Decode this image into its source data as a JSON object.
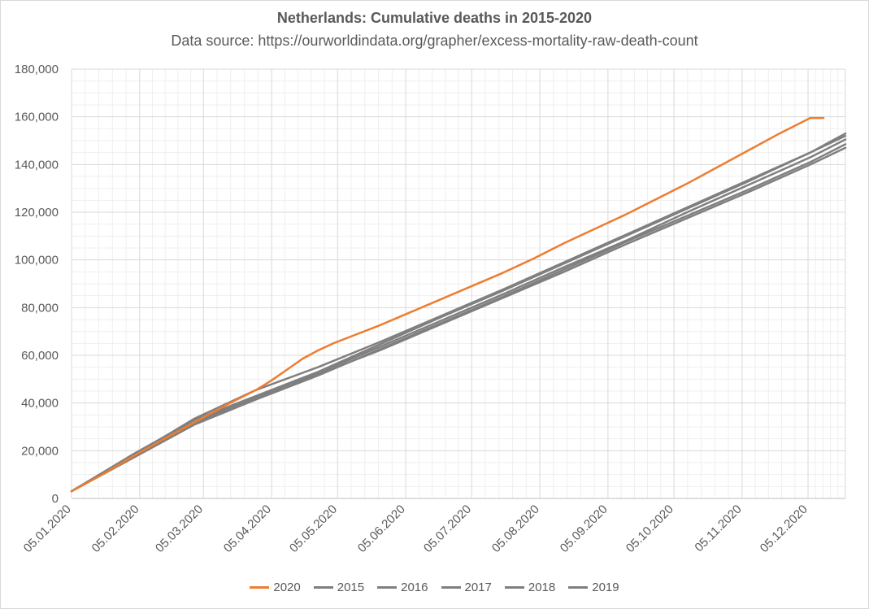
{
  "chart_data": {
    "type": "line",
    "title": "Netherlands: Cumulative deaths in 2015-2020",
    "subtitle": "Data source: https://ourworldindata.org/grapher/excess-mortality-raw-death-count",
    "xlabel": "",
    "ylabel": "",
    "ylim": [
      0,
      180000
    ],
    "y_ticks": [
      "0",
      "20,000",
      "40,000",
      "60,000",
      "80,000",
      "100,000",
      "120,000",
      "140,000",
      "160,000",
      "180,000"
    ],
    "x_range": [
      0,
      352
    ],
    "x_ticks": [
      {
        "day": 0,
        "label": "05.01.2020"
      },
      {
        "day": 31,
        "label": "05.02.2020"
      },
      {
        "day": 60,
        "label": "05.03.2020"
      },
      {
        "day": 91,
        "label": "05.04.2020"
      },
      {
        "day": 121,
        "label": "05.05.2020"
      },
      {
        "day": 152,
        "label": "05.06.2020"
      },
      {
        "day": 182,
        "label": "05.07.2020"
      },
      {
        "day": 213,
        "label": "05.08.2020"
      },
      {
        "day": 244,
        "label": "05.09.2020"
      },
      {
        "day": 274,
        "label": "05.10.2020"
      },
      {
        "day": 305,
        "label": "05.11.2020"
      },
      {
        "day": 335,
        "label": "05.12.2020"
      }
    ],
    "grid": true,
    "legend_position": "bottom",
    "series": [
      {
        "name": "2020",
        "color": "#ed7d31",
        "x": [
          0,
          14,
          28,
          42,
          56,
          70,
          84,
          91,
          98,
          105,
          112,
          119,
          126,
          140,
          154,
          168,
          182,
          196,
          210,
          224,
          238,
          252,
          266,
          280,
          294,
          308,
          322,
          336,
          342
        ],
        "y": [
          3000,
          10000,
          17700,
          24900,
          32000,
          39000,
          45500,
          49500,
          54000,
          58500,
          62000,
          65000,
          67500,
          72500,
          78000,
          83500,
          89000,
          94500,
          100500,
          107000,
          113000,
          119000,
          125500,
          132000,
          139000,
          146000,
          153000,
          159500,
          159500
        ]
      },
      {
        "name": "2015",
        "color": "#7f7f7f",
        "x": [
          0,
          28,
          56,
          84,
          112,
          140,
          168,
          196,
          224,
          252,
          280,
          308,
          336,
          353
        ],
        "y": [
          3000,
          18000,
          32000,
          42500,
          52500,
          63500,
          74500,
          85500,
          97000,
          108000,
          120000,
          131500,
          143000,
          150500
        ]
      },
      {
        "name": "2016",
        "color": "#7f7f7f",
        "x": [
          0,
          28,
          56,
          84,
          112,
          140,
          168,
          196,
          224,
          252,
          280,
          308,
          336,
          353
        ],
        "y": [
          3000,
          17000,
          31000,
          41500,
          51500,
          62500,
          73500,
          84500,
          96000,
          107500,
          118500,
          129500,
          141000,
          148500
        ]
      },
      {
        "name": "2017",
        "color": "#7f7f7f",
        "x": [
          0,
          28,
          56,
          84,
          112,
          140,
          168,
          196,
          224,
          252,
          280,
          308,
          336,
          353
        ],
        "y": [
          3000,
          18500,
          33000,
          43000,
          53000,
          64500,
          76000,
          87000,
          98500,
          110000,
          121500,
          133000,
          145000,
          153000
        ]
      },
      {
        "name": "2018",
        "color": "#7f7f7f",
        "x": [
          0,
          28,
          56,
          84,
          112,
          140,
          168,
          196,
          224,
          252,
          280,
          308,
          336,
          353
        ],
        "y": [
          3000,
          18000,
          33500,
          45500,
          55000,
          65500,
          76500,
          87500,
          99000,
          110500,
          122000,
          133500,
          145000,
          152000
        ]
      },
      {
        "name": "2019",
        "color": "#7f7f7f",
        "x": [
          0,
          28,
          56,
          84,
          112,
          140,
          168,
          196,
          224,
          252,
          280,
          308,
          336,
          353
        ],
        "y": [
          3000,
          17500,
          31500,
          42000,
          52000,
          62000,
          73000,
          84000,
          95000,
          106500,
          117500,
          128500,
          140000,
          147000
        ]
      }
    ]
  }
}
